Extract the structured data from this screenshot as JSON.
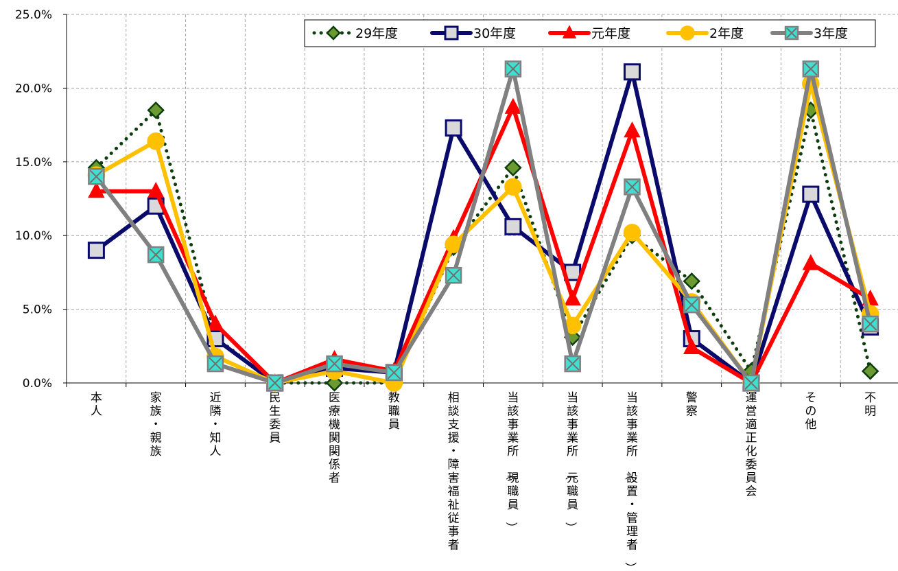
{
  "chart_data": {
    "type": "line",
    "title": "",
    "xlabel": "",
    "ylabel": "",
    "ylim": [
      0,
      25
    ],
    "y_ticks": [
      "0.0%",
      "5.0%",
      "10.0%",
      "15.0%",
      "20.0%",
      "25.0%"
    ],
    "grid": "dashed, both axes",
    "legend_position": "top-right",
    "categories": [
      "本人",
      "家族・親族",
      "近隣・知人",
      "民生委員",
      "医療機関関係者",
      "教職員",
      "相談支援・障害福祉従事者",
      "当該事業所（現職員）",
      "当該事業所（元職員）",
      "当該事業所（設置・管理者）",
      "警察",
      "運営適正化委員会",
      "その他",
      "不明"
    ],
    "series": [
      {
        "name": "29年度",
        "color": "#0d3d0d",
        "fill": "#6b9a32",
        "marker": "diamond",
        "dash": "dotted",
        "values": [
          14.6,
          18.5,
          3.1,
          0.0,
          0.0,
          0.0,
          9.2,
          14.6,
          3.1,
          10.0,
          6.9,
          0.8,
          18.5,
          0.8
        ]
      },
      {
        "name": "30年度",
        "color": "#0a0a6b",
        "fill": "#d9d9d9",
        "marker": "square",
        "dash": "solid",
        "values": [
          9.0,
          12.0,
          3.0,
          0.0,
          1.0,
          0.7,
          17.3,
          10.6,
          7.5,
          21.1,
          3.0,
          0.0,
          12.8,
          3.8
        ]
      },
      {
        "name": "元年度",
        "color": "#ff0000",
        "fill": "#ff0000",
        "marker": "triangle",
        "dash": "solid",
        "values": [
          13.0,
          13.0,
          4.0,
          0.0,
          1.6,
          0.8,
          9.8,
          18.7,
          5.7,
          17.1,
          2.4,
          0.0,
          8.1,
          5.7
        ]
      },
      {
        "name": "2年度",
        "color": "#ffc000",
        "fill": "#ffc000",
        "marker": "circle",
        "dash": "solid",
        "values": [
          14.1,
          16.4,
          1.8,
          0.0,
          0.8,
          0.0,
          9.4,
          13.3,
          3.9,
          10.2,
          5.5,
          0.0,
          20.3,
          4.7
        ]
      },
      {
        "name": "3年度",
        "color": "#808080",
        "fill": "#40e0d0",
        "marker": "x-square",
        "dash": "solid",
        "values": [
          14.0,
          8.7,
          1.3,
          0.0,
          1.3,
          0.7,
          7.3,
          21.3,
          1.3,
          13.3,
          5.3,
          0.0,
          21.3,
          4.0
        ]
      }
    ]
  }
}
